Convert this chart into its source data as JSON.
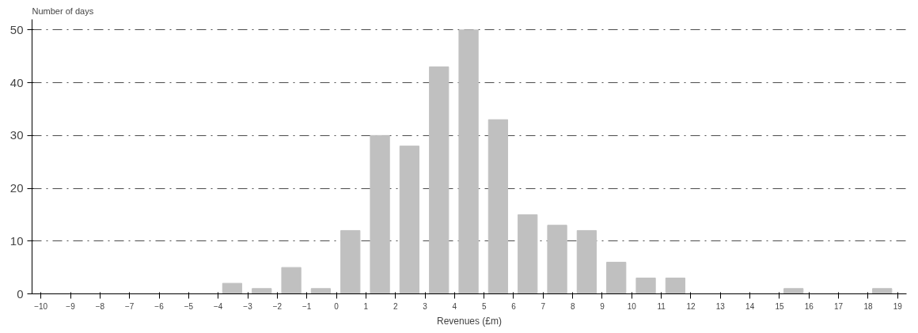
{
  "chart_data": {
    "type": "histogram",
    "ylabel": "Number of days",
    "xlabel": "Revenues (£m)",
    "bins": [
      -10,
      -9,
      -8,
      -7,
      -6,
      -5,
      -4,
      -3,
      -2,
      -1,
      0,
      1,
      2,
      3,
      4,
      5,
      6,
      7,
      8,
      9,
      10,
      11,
      12,
      13,
      14,
      15,
      16,
      17,
      18,
      19
    ],
    "values": [
      0,
      0,
      0,
      0,
      0,
      0,
      2,
      1,
      5,
      1,
      12,
      30,
      28,
      43,
      50,
      33,
      15,
      13,
      12,
      6,
      3,
      3,
      0,
      0,
      0,
      1,
      0,
      0,
      1
    ],
    "color": "#c0c0c0",
    "xlim": [
      -10.3,
      19.3
    ],
    "xticks": [
      -10,
      -9,
      -8,
      -7,
      -6,
      -5,
      -4,
      -3,
      -2,
      -1,
      0,
      1,
      2,
      3,
      4,
      5,
      6,
      7,
      8,
      9,
      10,
      11,
      12,
      13,
      14,
      15,
      16,
      17,
      18,
      19
    ],
    "ylim": [
      0,
      52
    ],
    "yticks": [
      0,
      10,
      20,
      30,
      40,
      50
    ],
    "grid": "y"
  }
}
